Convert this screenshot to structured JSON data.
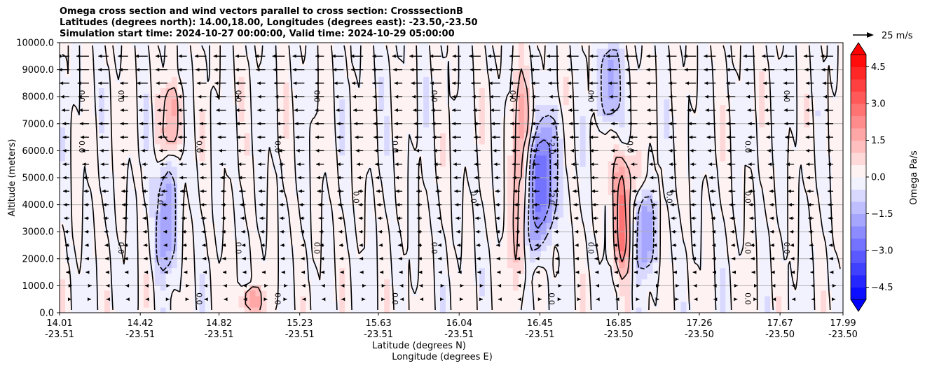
{
  "chart_data": {
    "type": "heatmap",
    "title_lines": [
      "Omega cross section and wind vectors parallel to cross section: CrosssectionB",
      "Latitudes (degrees north): 14.00,18.00, Longitudes (degrees east): -23.50,-23.50",
      "Simulation start time: 2024-10-27 00:00:00, Valid time: 2024-10-29 05:00:00"
    ],
    "ylabel": "Altitude (meters)",
    "xlabel_lines": [
      "Latitude (degrees N)",
      "Longitude (degrees E)"
    ],
    "ylim": [
      0,
      10000
    ],
    "yticks": [
      {
        "value": 0,
        "label": "0.0"
      },
      {
        "value": 1000,
        "label": "1000.0"
      },
      {
        "value": 2000,
        "label": "2000.0"
      },
      {
        "value": 3000,
        "label": "3000.0"
      },
      {
        "value": 4000,
        "label": "4000.0"
      },
      {
        "value": 5000,
        "label": "5000.0"
      },
      {
        "value": 6000,
        "label": "6000.0"
      },
      {
        "value": 7000,
        "label": "7000.0"
      },
      {
        "value": 8000,
        "label": "8000.0"
      },
      {
        "value": 9000,
        "label": "9000.0"
      },
      {
        "value": 10000,
        "label": "10000.0"
      }
    ],
    "xlim": [
      14.01,
      17.99
    ],
    "xticks": [
      {
        "value": 14.01,
        "lat": "14.01",
        "lon": "-23.51"
      },
      {
        "value": 14.42,
        "lat": "14.42",
        "lon": "-23.51"
      },
      {
        "value": 14.82,
        "lat": "14.82",
        "lon": "-23.51"
      },
      {
        "value": 15.23,
        "lat": "15.23",
        "lon": "-23.51"
      },
      {
        "value": 15.63,
        "lat": "15.63",
        "lon": "-23.51"
      },
      {
        "value": 16.04,
        "lat": "16.04",
        "lon": "-23.51"
      },
      {
        "value": 16.45,
        "lat": "16.45",
        "lon": "-23.51"
      },
      {
        "value": 16.85,
        "lat": "16.85",
        "lon": "-23.50"
      },
      {
        "value": 17.26,
        "lat": "17.26",
        "lon": "-23.50"
      },
      {
        "value": 17.67,
        "lat": "17.67",
        "lon": "-23.50"
      },
      {
        "value": 17.99,
        "lat": "17.99",
        "lon": "-23.50"
      }
    ],
    "grid": "horizontal",
    "colorbar": {
      "label": "Omega Pa/s",
      "min": -5.0,
      "max": 5.0,
      "step": 0.5,
      "ticks": [
        "4.5",
        "3.0",
        "1.5",
        "0.0",
        "−1.5",
        "−3.0",
        "−4.5"
      ],
      "tick_values": [
        4.5,
        3.0,
        1.5,
        0.0,
        -1.5,
        -3.0,
        -4.5
      ],
      "cmap": "bwr"
    },
    "contour_levels": [
      -2.0,
      -1.0,
      0.0,
      1.0,
      2.0
    ],
    "wind_key": {
      "label": "25 m/s",
      "speed": 25
    },
    "vector_levels_m": [
      9500,
      9000,
      8500,
      8000,
      7500,
      7000,
      6500,
      6000,
      5500,
      5000,
      4500,
      4000,
      3500,
      3000,
      2500,
      2000,
      1500,
      1000,
      500
    ],
    "features": {
      "updraft_columns": [
        {
          "lat": 14.55,
          "zmin": 1500,
          "zmax": 5500,
          "peak": -2.0
        },
        {
          "lat": 16.42,
          "zmin": 2000,
          "zmax": 6500,
          "peak": -2.5
        },
        {
          "lat": 16.5,
          "zmin": 3000,
          "zmax": 7500,
          "peak": -2.0
        },
        {
          "lat": 16.98,
          "zmin": 1500,
          "zmax": 4500,
          "peak": -2.0
        },
        {
          "lat": 16.8,
          "zmin": 7000,
          "zmax": 10000,
          "peak": -2.0
        }
      ],
      "downdraft_columns": [
        {
          "lat": 14.58,
          "zmin": 6000,
          "zmax": 8500,
          "peak": 1.5
        },
        {
          "lat": 16.87,
          "zmin": 1500,
          "zmax": 6000,
          "peak": 2.5
        },
        {
          "lat": 16.35,
          "zmin": 1000,
          "zmax": 9000,
          "peak": 1.5
        },
        {
          "lat": 14.98,
          "zmin": 0,
          "zmax": 1000,
          "peak": 2.0
        }
      ]
    }
  },
  "colors": {
    "blue": "#0000ff",
    "red": "#ff0000",
    "contour": "#000000",
    "grid": "#b0b0b0"
  }
}
